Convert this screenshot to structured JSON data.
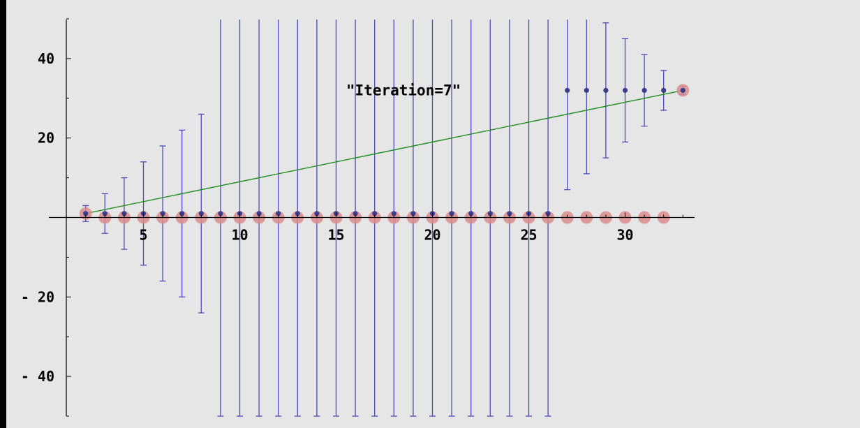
{
  "chart_data": {
    "type": "scatter",
    "title": "",
    "xlabel": "",
    "ylabel": "",
    "xlim": [
      0,
      32.6
    ],
    "ylim": [
      -50,
      50
    ],
    "x_ticks": [
      5,
      10,
      15,
      20,
      25,
      30
    ],
    "y_ticks": [
      -40,
      -20,
      20,
      40
    ],
    "grid": false,
    "annotation": "\"Iteration=7\"",
    "annotation_pos": [
      18.5,
      32
    ],
    "colors": {
      "background": "#e6e6e6",
      "point": "#3c3c8c",
      "errorbar": "#4b4bb4",
      "highlight": "#d98c8c",
      "fit_line": "#1e8c1e",
      "axis": "#000000"
    },
    "series": [
      {
        "type": "errorbar",
        "points": [
          {
            "x": 2,
            "y": 1,
            "lo": -1,
            "hi": 3
          },
          {
            "x": 3,
            "y": 1,
            "lo": -4,
            "hi": 6
          },
          {
            "x": 4,
            "y": 1,
            "lo": -8,
            "hi": 10
          },
          {
            "x": 5,
            "y": 1,
            "lo": -12,
            "hi": 14
          },
          {
            "x": 6,
            "y": 1,
            "lo": -16,
            "hi": 18
          },
          {
            "x": 7,
            "y": 1,
            "lo": -20,
            "hi": 22
          },
          {
            "x": 8,
            "y": 1,
            "lo": -24,
            "hi": 26
          },
          {
            "x": 9,
            "y": 1,
            "lo": -50,
            "hi": 50
          },
          {
            "x": 10,
            "y": 1,
            "lo": -50,
            "hi": 50
          },
          {
            "x": 11,
            "y": 1,
            "lo": -50,
            "hi": 50
          },
          {
            "x": 12,
            "y": 1,
            "lo": -50,
            "hi": 50
          },
          {
            "x": 13,
            "y": 1,
            "lo": -50,
            "hi": 50
          },
          {
            "x": 14,
            "y": 1,
            "lo": -50,
            "hi": 50
          },
          {
            "x": 15,
            "y": 1,
            "lo": -50,
            "hi": 50
          },
          {
            "x": 16,
            "y": 1,
            "lo": -50,
            "hi": 50
          },
          {
            "x": 17,
            "y": 1,
            "lo": -50,
            "hi": 50
          },
          {
            "x": 18,
            "y": 1,
            "lo": -50,
            "hi": 50
          },
          {
            "x": 19,
            "y": 1,
            "lo": -50,
            "hi": 50
          },
          {
            "x": 20,
            "y": 1,
            "lo": -50,
            "hi": 50
          },
          {
            "x": 21,
            "y": 1,
            "lo": -50,
            "hi": 50
          },
          {
            "x": 22,
            "y": 1,
            "lo": -50,
            "hi": 50
          },
          {
            "x": 23,
            "y": 1,
            "lo": -50,
            "hi": 50
          },
          {
            "x": 24,
            "y": 1,
            "lo": -50,
            "hi": 50
          },
          {
            "x": 25,
            "y": 1,
            "lo": -50,
            "hi": 50
          },
          {
            "x": 26,
            "y": 1,
            "lo": -50,
            "hi": 50
          },
          {
            "x": 27,
            "y": 32,
            "lo": 7,
            "hi": 50
          },
          {
            "x": 28,
            "y": 32,
            "lo": 11,
            "hi": 50
          },
          {
            "x": 29,
            "y": 32,
            "lo": 15,
            "hi": 49
          },
          {
            "x": 30,
            "y": 32,
            "lo": 19,
            "hi": 45
          },
          {
            "x": 31,
            "y": 32,
            "lo": 23,
            "hi": 41
          },
          {
            "x": 32,
            "y": 32,
            "lo": 27,
            "hi": 37
          },
          {
            "x": 33,
            "y": 32,
            "lo": 31,
            "hi": 33
          }
        ]
      },
      {
        "type": "highlight",
        "points": [
          {
            "x": 2,
            "y": 1
          },
          {
            "x": 3,
            "y": 0
          },
          {
            "x": 4,
            "y": 0
          },
          {
            "x": 5,
            "y": 0
          },
          {
            "x": 6,
            "y": 0
          },
          {
            "x": 7,
            "y": 0
          },
          {
            "x": 8,
            "y": 0
          },
          {
            "x": 9,
            "y": 0
          },
          {
            "x": 10,
            "y": 0
          },
          {
            "x": 11,
            "y": 0
          },
          {
            "x": 12,
            "y": 0
          },
          {
            "x": 13,
            "y": 0
          },
          {
            "x": 14,
            "y": 0
          },
          {
            "x": 15,
            "y": 0
          },
          {
            "x": 16,
            "y": 0
          },
          {
            "x": 17,
            "y": 0
          },
          {
            "x": 18,
            "y": 0
          },
          {
            "x": 19,
            "y": 0
          },
          {
            "x": 20,
            "y": 0
          },
          {
            "x": 21,
            "y": 0
          },
          {
            "x": 22,
            "y": 0
          },
          {
            "x": 23,
            "y": 0
          },
          {
            "x": 24,
            "y": 0
          },
          {
            "x": 25,
            "y": 0
          },
          {
            "x": 26,
            "y": 0
          },
          {
            "x": 27,
            "y": 0
          },
          {
            "x": 28,
            "y": 0
          },
          {
            "x": 29,
            "y": 0
          },
          {
            "x": 30,
            "y": 0
          },
          {
            "x": 31,
            "y": 0
          },
          {
            "x": 32,
            "y": 0
          },
          {
            "x": 33,
            "y": 32
          }
        ]
      },
      {
        "type": "line",
        "points": [
          {
            "x": 2,
            "y": 1
          },
          {
            "x": 33,
            "y": 32
          }
        ]
      }
    ]
  }
}
